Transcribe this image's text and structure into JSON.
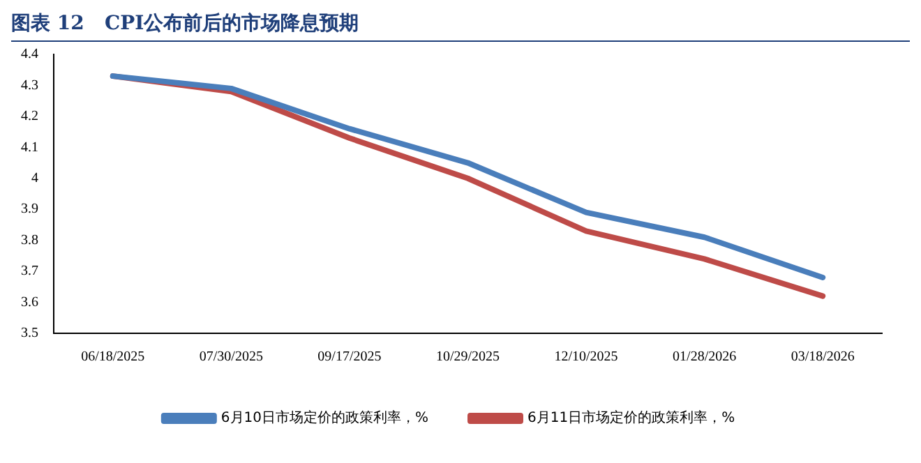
{
  "chart_data": {
    "type": "line",
    "title": "图表 12   CPI公布前后的市场降息预期",
    "categories": [
      "06/18/2025",
      "07/30/2025",
      "09/17/2025",
      "10/29/2025",
      "12/10/2025",
      "01/28/2026",
      "03/18/2026"
    ],
    "series": [
      {
        "name": "6月10日市场定价的政策利率，%",
        "color": "#4a7ebb",
        "values": [
          4.33,
          4.29,
          4.16,
          4.05,
          3.89,
          3.81,
          3.68
        ]
      },
      {
        "name": "6月11日市场定价的政策利率，%",
        "color": "#be4b48",
        "values": [
          4.33,
          4.28,
          4.13,
          4.0,
          3.83,
          3.74,
          3.62
        ]
      }
    ],
    "ylim": [
      3.5,
      4.4
    ],
    "yticks": [
      3.5,
      3.6,
      3.7,
      3.8,
      3.9,
      4,
      4.1,
      4.2,
      4.3,
      4.4
    ],
    "grid": false,
    "legend": "bottom",
    "marker": "none",
    "line_style": "solid"
  }
}
